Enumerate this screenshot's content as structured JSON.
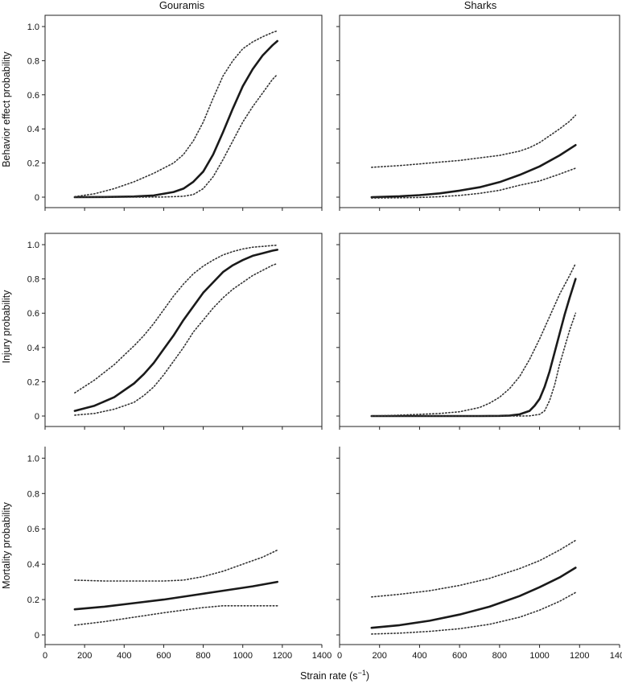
{
  "figure": {
    "col_titles": [
      "Gouramis",
      "Sharks"
    ],
    "row_ylabels": [
      "Behavior effect probability",
      "Injury probability",
      "Mortality probability"
    ],
    "xlabel_prefix": "Strain rate (s",
    "xlabel_superscript": "−1",
    "xlabel_suffix": ")"
  },
  "chart_data": [
    {
      "type": "line",
      "panel": "Gouramis behavior",
      "title": "Gouramis",
      "ylabel": "Behavior effect probability",
      "xlabel": "",
      "xlim": [
        0,
        1400
      ],
      "ylim": [
        0,
        1.0
      ],
      "x_ticks": [],
      "y_ticks": [
        "0",
        "0.2",
        "0.4",
        "0.6",
        "0.8",
        "1.0"
      ],
      "series": [
        {
          "role": "mean",
          "x": [
            150,
            300,
            450,
            550,
            650,
            700,
            750,
            800,
            850,
            900,
            950,
            1000,
            1050,
            1100,
            1150,
            1175
          ],
          "y": [
            0,
            0.001,
            0.004,
            0.01,
            0.03,
            0.05,
            0.09,
            0.15,
            0.25,
            0.38,
            0.52,
            0.65,
            0.75,
            0.83,
            0.89,
            0.915
          ]
        },
        {
          "role": "upper",
          "x": [
            150,
            250,
            350,
            450,
            550,
            650,
            700,
            750,
            800,
            850,
            900,
            950,
            1000,
            1050,
            1100,
            1150,
            1175
          ],
          "y": [
            0.003,
            0.02,
            0.05,
            0.09,
            0.14,
            0.2,
            0.25,
            0.33,
            0.44,
            0.58,
            0.71,
            0.8,
            0.87,
            0.91,
            0.94,
            0.965,
            0.975
          ]
        },
        {
          "role": "lower",
          "x": [
            150,
            400,
            600,
            700,
            750,
            800,
            850,
            900,
            950,
            1000,
            1050,
            1100,
            1150,
            1175
          ],
          "y": [
            0,
            0,
            0.001,
            0.005,
            0.015,
            0.05,
            0.12,
            0.22,
            0.33,
            0.44,
            0.53,
            0.61,
            0.69,
            0.72
          ]
        }
      ]
    },
    {
      "type": "line",
      "panel": "Sharks behavior",
      "title": "Sharks",
      "ylabel": "",
      "xlabel": "",
      "xlim": [
        0,
        1400
      ],
      "ylim": [
        0,
        1.0
      ],
      "x_ticks": [],
      "y_ticks": [],
      "series": [
        {
          "role": "mean",
          "x": [
            160,
            300,
            400,
            500,
            600,
            700,
            800,
            900,
            1000,
            1100,
            1180
          ],
          "y": [
            0,
            0.005,
            0.012,
            0.022,
            0.038,
            0.058,
            0.088,
            0.13,
            0.18,
            0.245,
            0.305
          ]
        },
        {
          "role": "upper",
          "x": [
            160,
            300,
            400,
            500,
            600,
            700,
            800,
            900,
            950,
            1000,
            1050,
            1100,
            1150,
            1180
          ],
          "y": [
            0.175,
            0.185,
            0.195,
            0.205,
            0.215,
            0.23,
            0.245,
            0.27,
            0.29,
            0.32,
            0.36,
            0.4,
            0.445,
            0.48
          ]
        },
        {
          "role": "lower",
          "x": [
            160,
            300,
            400,
            500,
            600,
            700,
            800,
            900,
            1000,
            1100,
            1180
          ],
          "y": [
            -0.005,
            -0.004,
            -0.002,
            0.003,
            0.01,
            0.022,
            0.04,
            0.07,
            0.095,
            0.135,
            0.17
          ]
        }
      ]
    },
    {
      "type": "line",
      "panel": "Gouramis injury",
      "title": "",
      "ylabel": "Injury probability",
      "xlabel": "",
      "xlim": [
        0,
        1400
      ],
      "ylim": [
        0,
        1.0
      ],
      "x_ticks": [],
      "y_ticks": [
        "0",
        "0.2",
        "0.4",
        "0.6",
        "0.8",
        "1.0"
      ],
      "series": [
        {
          "role": "mean",
          "x": [
            150,
            250,
            350,
            450,
            500,
            550,
            600,
            650,
            700,
            750,
            800,
            850,
            900,
            950,
            1000,
            1050,
            1100,
            1150,
            1175
          ],
          "y": [
            0.03,
            0.06,
            0.11,
            0.19,
            0.245,
            0.31,
            0.39,
            0.47,
            0.56,
            0.64,
            0.72,
            0.78,
            0.84,
            0.88,
            0.91,
            0.935,
            0.95,
            0.965,
            0.97
          ]
        },
        {
          "role": "upper",
          "x": [
            150,
            250,
            350,
            450,
            500,
            550,
            600,
            650,
            700,
            750,
            800,
            850,
            900,
            950,
            1000,
            1050,
            1100,
            1150,
            1175
          ],
          "y": [
            0.135,
            0.21,
            0.3,
            0.41,
            0.47,
            0.54,
            0.62,
            0.7,
            0.77,
            0.83,
            0.875,
            0.91,
            0.94,
            0.96,
            0.975,
            0.985,
            0.99,
            0.995,
            0.997
          ]
        },
        {
          "role": "lower",
          "x": [
            150,
            250,
            350,
            450,
            500,
            550,
            600,
            650,
            700,
            750,
            800,
            850,
            900,
            950,
            1000,
            1050,
            1100,
            1150,
            1175
          ],
          "y": [
            0.005,
            0.015,
            0.04,
            0.08,
            0.12,
            0.17,
            0.24,
            0.32,
            0.4,
            0.49,
            0.56,
            0.63,
            0.69,
            0.74,
            0.78,
            0.82,
            0.85,
            0.88,
            0.89
          ]
        }
      ]
    },
    {
      "type": "line",
      "panel": "Sharks injury",
      "title": "",
      "ylabel": "",
      "xlabel": "",
      "xlim": [
        0,
        1400
      ],
      "ylim": [
        0,
        1.0
      ],
      "x_ticks": [],
      "y_ticks": [],
      "series": [
        {
          "role": "mean",
          "x": [
            160,
            300,
            500,
            700,
            800,
            850,
            900,
            950,
            975,
            1000,
            1025,
            1050,
            1075,
            1100,
            1125,
            1150,
            1180
          ],
          "y": [
            0,
            0,
            0,
            0,
            0.001,
            0.003,
            0.01,
            0.03,
            0.06,
            0.1,
            0.17,
            0.26,
            0.37,
            0.48,
            0.59,
            0.69,
            0.8
          ]
        },
        {
          "role": "upper",
          "x": [
            160,
            300,
            500,
            600,
            700,
            750,
            800,
            850,
            900,
            950,
            1000,
            1050,
            1100,
            1150,
            1180
          ],
          "y": [
            0,
            0.005,
            0.015,
            0.025,
            0.05,
            0.075,
            0.11,
            0.16,
            0.23,
            0.33,
            0.45,
            0.58,
            0.71,
            0.82,
            0.89
          ]
        },
        {
          "role": "lower",
          "x": [
            160,
            400,
            700,
            900,
            950,
            1000,
            1025,
            1050,
            1075,
            1100,
            1125,
            1150,
            1180
          ],
          "y": [
            0,
            0,
            0,
            0,
            0.001,
            0.01,
            0.03,
            0.09,
            0.18,
            0.3,
            0.4,
            0.5,
            0.6
          ]
        }
      ]
    },
    {
      "type": "line",
      "panel": "Gouramis mortality",
      "title": "",
      "ylabel": "Mortality probability",
      "xlabel": "",
      "xlim": [
        0,
        1400
      ],
      "ylim": [
        0,
        1.0
      ],
      "x_ticks": [
        "0",
        "200",
        "400",
        "600",
        "800",
        "1000",
        "1200",
        "1400"
      ],
      "y_ticks": [
        "0",
        "0.2",
        "0.4",
        "0.6",
        "0.8",
        "1.0"
      ],
      "series": [
        {
          "role": "mean",
          "x": [
            150,
            300,
            450,
            600,
            750,
            900,
            1050,
            1175
          ],
          "y": [
            0.145,
            0.16,
            0.18,
            0.2,
            0.225,
            0.25,
            0.275,
            0.3
          ]
        },
        {
          "role": "upper",
          "x": [
            150,
            300,
            450,
            600,
            700,
            800,
            900,
            1000,
            1100,
            1175
          ],
          "y": [
            0.31,
            0.305,
            0.305,
            0.305,
            0.31,
            0.33,
            0.36,
            0.4,
            0.44,
            0.48
          ]
        },
        {
          "role": "lower",
          "x": [
            150,
            300,
            450,
            600,
            700,
            800,
            900,
            1000,
            1100,
            1175
          ],
          "y": [
            0.055,
            0.075,
            0.1,
            0.125,
            0.14,
            0.155,
            0.165,
            0.165,
            0.165,
            0.165
          ]
        }
      ]
    },
    {
      "type": "line",
      "panel": "Sharks mortality",
      "title": "",
      "ylabel": "",
      "xlabel": "Strain rate (s−1)",
      "xlim": [
        0,
        1400
      ],
      "ylim": [
        0,
        1.0
      ],
      "x_ticks": [
        "0",
        "200",
        "400",
        "600",
        "800",
        "1000",
        "1200",
        "1400"
      ],
      "y_ticks": [],
      "series": [
        {
          "role": "mean",
          "x": [
            160,
            300,
            450,
            600,
            750,
            900,
            1000,
            1100,
            1180
          ],
          "y": [
            0.04,
            0.055,
            0.08,
            0.115,
            0.16,
            0.22,
            0.27,
            0.325,
            0.38
          ]
        },
        {
          "role": "upper",
          "x": [
            160,
            300,
            450,
            600,
            750,
            900,
            1000,
            1100,
            1180
          ],
          "y": [
            0.215,
            0.23,
            0.25,
            0.28,
            0.32,
            0.375,
            0.42,
            0.48,
            0.535
          ]
        },
        {
          "role": "lower",
          "x": [
            160,
            300,
            450,
            600,
            750,
            900,
            1000,
            1100,
            1180
          ],
          "y": [
            0.005,
            0.01,
            0.02,
            0.035,
            0.06,
            0.1,
            0.14,
            0.19,
            0.24
          ]
        }
      ]
    }
  ]
}
